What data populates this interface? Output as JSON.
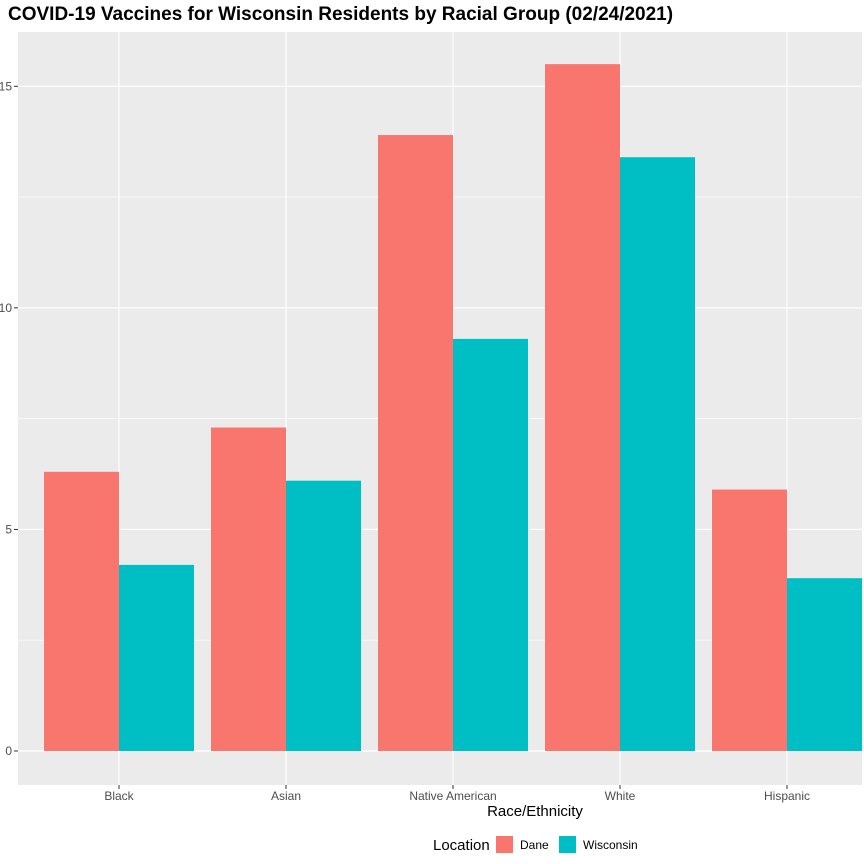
{
  "chart_data": {
    "type": "bar",
    "title": "COVID-19 Vaccines for Wisconsin Residents by Racial Group (02/24/2021)",
    "xlabel": "Race/Ethnicity",
    "ylabel": "",
    "categories": [
      "Black",
      "Asian",
      "Native American",
      "White",
      "Hispanic"
    ],
    "series": [
      {
        "name": "Dane",
        "color": "#F8766D",
        "values": [
          6.3,
          7.3,
          13.9,
          15.5,
          5.9
        ]
      },
      {
        "name": "Wisconsin",
        "color": "#00BFC4",
        "values": [
          4.2,
          6.1,
          9.3,
          13.4,
          3.9
        ]
      }
    ],
    "ylim": [
      0,
      16.2
    ],
    "yticks": [
      0,
      5,
      10,
      15
    ],
    "ytick_labels": [
      "0",
      "5",
      "10",
      "15"
    ],
    "grid": true,
    "panel_background": "#EBEBEB",
    "grid_color": "#FFFFFF",
    "legend": {
      "title": "Location",
      "position": "bottom"
    }
  }
}
